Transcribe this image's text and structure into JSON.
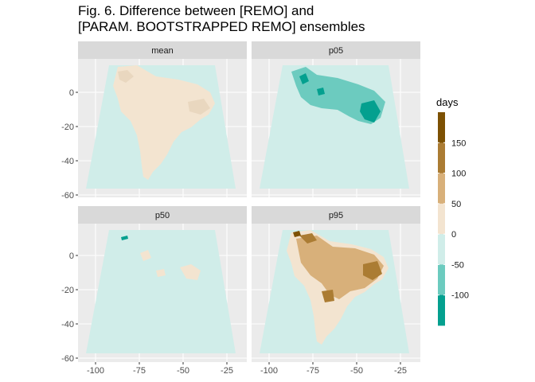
{
  "title": "Fig. 6. Difference between [REMO] and\n[PARAM. BOOTSTRAPPED REMO] ensembles",
  "chart_data": {
    "type": "heatmap",
    "title": "Fig. 6. Difference between [REMO] and [PARAM. BOOTSTRAPPED REMO] ensembles",
    "xlabel": "",
    "ylabel": "",
    "xlim": [
      -110,
      -20
    ],
    "ylim": [
      -62,
      20
    ],
    "x_ticks": [
      -100,
      -75,
      -50,
      -25
    ],
    "y_ticks": [
      0,
      -20,
      -40,
      -60
    ],
    "grid": true,
    "facets": [
      {
        "name": "mean",
        "summary": "mostly 0 to -50 over ocean; 0 to 50 over land"
      },
      {
        "name": "p05",
        "summary": "-50 to -100 over northern/eastern South America, patches below -100 in the northeast"
      },
      {
        "name": "p50",
        "summary": "mostly 0 to -50; small 0 to 50 patches over land"
      },
      {
        "name": "p95",
        "summary": "0 to 50 over most land, 50 to 150 over the north and northeast, above 150 in places"
      }
    ],
    "legend": {
      "title": "days",
      "position": "right",
      "breaks": [
        150,
        100,
        50,
        0,
        -50,
        -100
      ],
      "bins": [
        {
          "color": "#7d5103"
        },
        {
          "color": "#ab7c33"
        },
        {
          "color": "#d8b07a"
        },
        {
          "color": "#f3e4d0"
        },
        {
          "color": "#d0ede9"
        },
        {
          "color": "#6ccbbf"
        },
        {
          "color": "#04a08f"
        }
      ]
    }
  },
  "colors": {
    "panel_bg": "#ebebeb",
    "strip_bg": "#d9d9d9",
    "grid_major": "#ffffff",
    "ocean": "#d0ede9",
    "land": "#f3e4d0"
  }
}
